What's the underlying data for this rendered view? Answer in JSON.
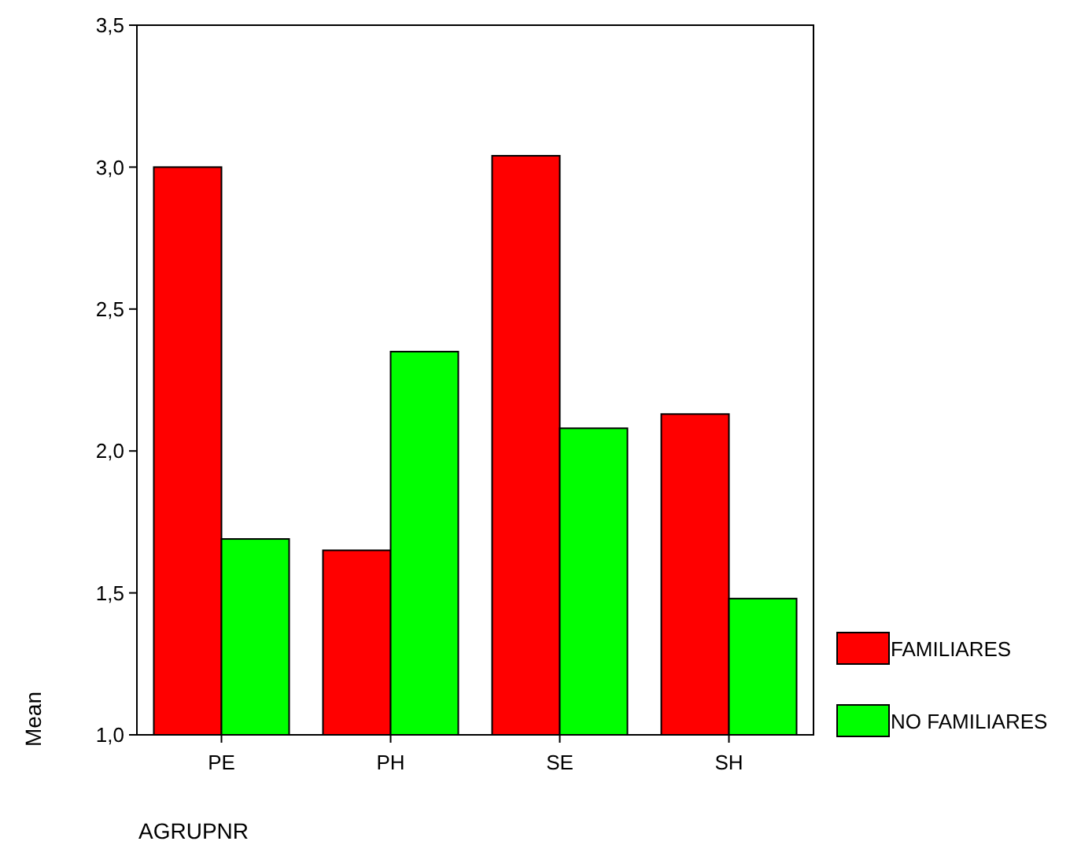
{
  "chart_data": {
    "type": "bar",
    "xlabel": "AGRUPNR",
    "ylabel": "Mean",
    "categories": [
      "PE",
      "PH",
      "SE",
      "SH"
    ],
    "series": [
      {
        "name": "FAMILIARES",
        "color": "#ff0000",
        "values": [
          3.0,
          1.65,
          3.04,
          2.13
        ]
      },
      {
        "name": "NO FAMILIARES",
        "color": "#00ff00",
        "values": [
          1.69,
          2.35,
          2.08,
          1.48
        ]
      }
    ],
    "ylim": [
      1,
      3.5
    ],
    "yticks": [
      {
        "value": 1,
        "label": "1,0"
      },
      {
        "value": 1.5,
        "label": "1,5"
      },
      {
        "value": 2,
        "label": "2,0"
      },
      {
        "value": 2.5,
        "label": "2,5"
      },
      {
        "value": 3,
        "label": "3,0"
      },
      {
        "value": 3.5,
        "label": "3,5"
      }
    ],
    "grid": false,
    "legend": "right"
  }
}
